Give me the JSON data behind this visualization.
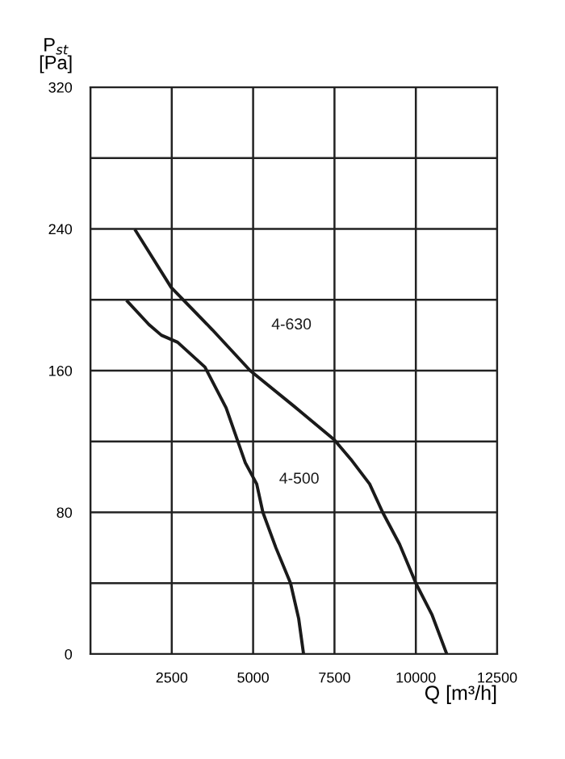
{
  "chart_data": {
    "type": "line",
    "xlabel": "Q [m³/h]",
    "ylabel": "P$_{st}$\n[Pa]",
    "xlim": [
      0,
      12500
    ],
    "ylim": [
      0,
      320
    ],
    "xticks": [
      {
        "value": 0,
        "label": null
      },
      2500,
      5000,
      7500,
      10000,
      12500
    ],
    "yticks": [
      0,
      {
        "value": 40,
        "label": null
      },
      80,
      {
        "value": 120,
        "label": null
      },
      160,
      {
        "value": 200,
        "label": null
      },
      240,
      {
        "value": 280,
        "label": null
      },
      320
    ],
    "grid": true,
    "legend": false,
    "marker": "none",
    "line_style": "solid",
    "series": [
      {
        "name": "4-630",
        "color": "#1a1a1a",
        "x": [
          1390,
          2480,
          3750,
          4910,
          6250,
          7490,
          8000,
          8580,
          8980,
          9500,
          10000,
          10500,
          10950
        ],
        "values": [
          239,
          207,
          183,
          160,
          140,
          121,
          110,
          96,
          80,
          62,
          40,
          22,
          0
        ]
      },
      {
        "name": "4-500",
        "color": "#1a1a1a",
        "x": [
          1140,
          1800,
          2180,
          2680,
          3520,
          4170,
          4760,
          5110,
          5300,
          5700,
          6150,
          6400,
          6550
        ],
        "values": [
          199,
          186,
          180,
          176,
          162,
          139,
          108,
          96,
          80,
          60,
          40,
          20,
          0
        ]
      }
    ]
  }
}
